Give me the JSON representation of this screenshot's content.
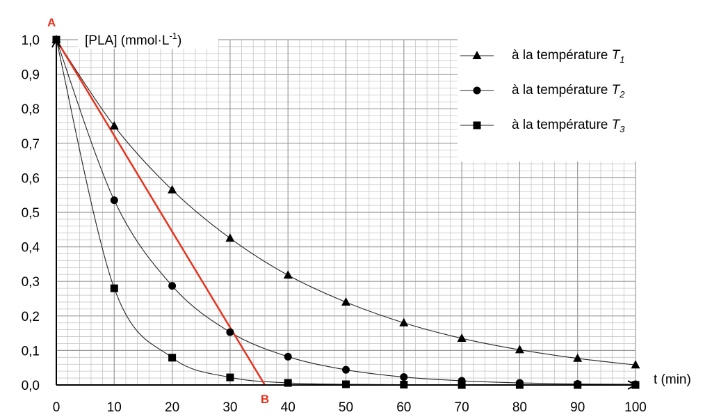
{
  "chart_data": {
    "type": "scatter",
    "title": "",
    "ylabel": "[PLA] (mmol·L",
    "ylabel_sup": "-1",
    "ylabel_close": ")",
    "xlabel": "t (min)",
    "xlim": [
      0,
      100
    ],
    "ylim": [
      0,
      1.0
    ],
    "grid": true,
    "x_minor_step": 2,
    "y_minor_step": 0.02,
    "x_ticks": [
      "0",
      "10",
      "20",
      "30",
      "40",
      "50",
      "60",
      "70",
      "80",
      "90",
      "100"
    ],
    "y_ticks": [
      "0,0",
      "0,1",
      "0,2",
      "0,3",
      "0,4",
      "0,5",
      "0,6",
      "0,7",
      "0,8",
      "0,9",
      "1,0"
    ],
    "legend_position": "top-right",
    "series": [
      {
        "legend_text": "à la température ",
        "legend_var": "T",
        "legend_sub": "1",
        "marker": "triangle",
        "x": [
          0,
          10,
          20,
          30,
          40,
          50,
          60,
          70,
          80,
          90,
          100
        ],
        "y": [
          1.0,
          0.75,
          0.565,
          0.425,
          0.318,
          0.24,
          0.18,
          0.135,
          0.102,
          0.077,
          0.058
        ]
      },
      {
        "legend_text": "à la température ",
        "legend_var": "T",
        "legend_sub": "2",
        "marker": "circle",
        "x": [
          0,
          10,
          20,
          30,
          40,
          50,
          60,
          70,
          80,
          90,
          100
        ],
        "y": [
          1.0,
          0.535,
          0.287,
          0.153,
          0.082,
          0.044,
          0.023,
          0.012,
          0.006,
          0.003,
          0.002
        ]
      },
      {
        "legend_text": "à la température ",
        "legend_var": "T",
        "legend_sub": "3",
        "marker": "square",
        "x": [
          0,
          10,
          20,
          30,
          40,
          50,
          60,
          70,
          80,
          90,
          100
        ],
        "y": [
          1.0,
          0.28,
          0.079,
          0.022,
          0.006,
          0.002,
          0.001,
          0.0,
          0.0,
          0.0,
          0.0
        ]
      }
    ],
    "tangent": {
      "color": "#e8321e",
      "start": {
        "label": "A",
        "x": 0,
        "y": 1.0
      },
      "end": {
        "label": "B",
        "x": 36,
        "y": 0.0
      }
    }
  }
}
